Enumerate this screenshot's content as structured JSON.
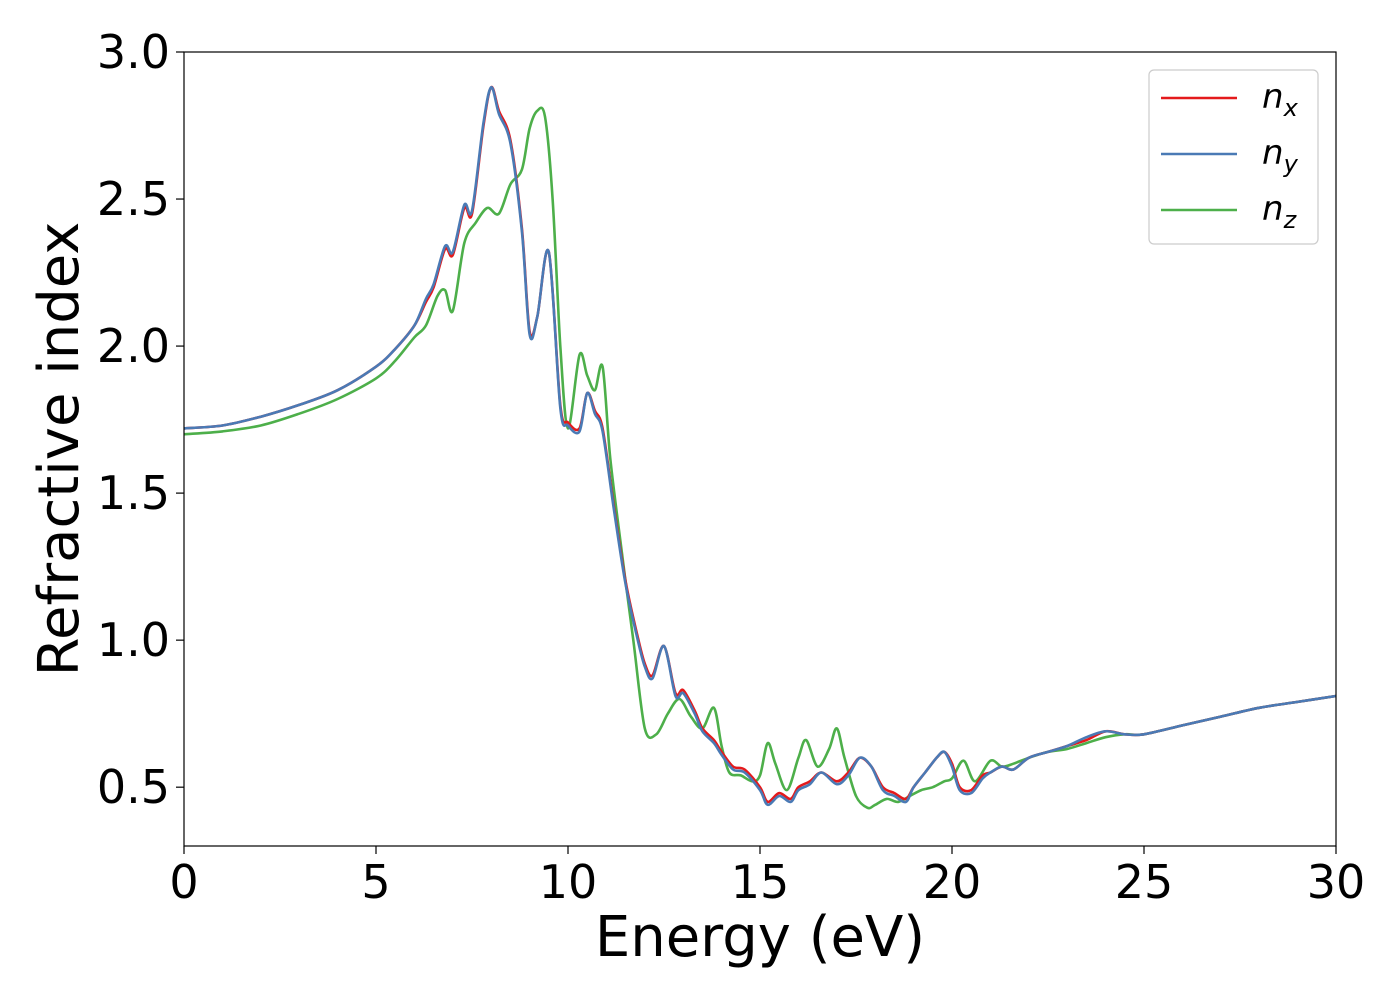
{
  "chart_data": {
    "type": "line",
    "xlabel": "Energy (eV)",
    "ylabel": "Refractive index",
    "xlim": [
      0,
      30
    ],
    "ylim": [
      0.3,
      3.0
    ],
    "xticks": [
      0,
      5,
      10,
      15,
      20,
      25,
      30
    ],
    "xtick_labels": [
      "0",
      "5",
      "10",
      "15",
      "20",
      "25",
      "30"
    ],
    "yticks": [
      0.5,
      1.0,
      1.5,
      2.0,
      2.5,
      3.0
    ],
    "ytick_labels": [
      "0.5",
      "1.0",
      "1.5",
      "2.0",
      "2.5",
      "3.0"
    ],
    "grid": false,
    "legend_position": "top-right",
    "series": [
      {
        "name": "n_x",
        "legend_main": "n",
        "legend_sub": "x",
        "color": "#e41a1c",
        "x": [
          0,
          1,
          2,
          3,
          4,
          5,
          5.5,
          6,
          6.3,
          6.5,
          6.8,
          7.0,
          7.3,
          7.5,
          7.8,
          8.0,
          8.2,
          8.5,
          8.8,
          9.0,
          9.2,
          9.5,
          9.8,
          10.0,
          10.3,
          10.5,
          10.7,
          10.9,
          11.2,
          11.5,
          11.8,
          12.0,
          12.2,
          12.5,
          12.8,
          13.0,
          13.3,
          13.5,
          13.8,
          14.0,
          14.3,
          14.6,
          15.0,
          15.2,
          15.5,
          15.8,
          16.0,
          16.3,
          16.6,
          17.0,
          17.3,
          17.6,
          17.9,
          18.2,
          18.5,
          18.8,
          19.0,
          19.3,
          19.6,
          19.8,
          20.0,
          20.2,
          20.5,
          20.8,
          21.0,
          21.3,
          21.6,
          22.0,
          22.5,
          23.0,
          23.5,
          24.0,
          24.5,
          25.0,
          26.0,
          27.0,
          28.0,
          29.0,
          30.0
        ],
        "values": [
          1.72,
          1.73,
          1.76,
          1.8,
          1.85,
          1.93,
          1.99,
          2.07,
          2.15,
          2.2,
          2.33,
          2.31,
          2.47,
          2.45,
          2.75,
          2.88,
          2.8,
          2.7,
          2.4,
          2.05,
          2.1,
          2.32,
          1.8,
          1.74,
          1.72,
          1.84,
          1.78,
          1.72,
          1.45,
          1.2,
          1.02,
          0.92,
          0.88,
          0.98,
          0.82,
          0.83,
          0.76,
          0.7,
          0.66,
          0.62,
          0.57,
          0.56,
          0.5,
          0.45,
          0.48,
          0.46,
          0.5,
          0.52,
          0.55,
          0.52,
          0.55,
          0.6,
          0.57,
          0.5,
          0.48,
          0.46,
          0.5,
          0.55,
          0.6,
          0.62,
          0.58,
          0.5,
          0.49,
          0.54,
          0.55,
          0.57,
          0.56,
          0.6,
          0.62,
          0.64,
          0.66,
          0.69,
          0.68,
          0.68,
          0.71,
          0.74,
          0.77,
          0.79,
          0.81
        ]
      },
      {
        "name": "n_y",
        "legend_main": "n",
        "legend_sub": "y",
        "color": "#4a7ab5",
        "x": [
          0,
          1,
          2,
          3,
          4,
          5,
          5.5,
          6,
          6.3,
          6.5,
          6.8,
          7.0,
          7.3,
          7.5,
          7.8,
          8.0,
          8.2,
          8.5,
          8.8,
          9.0,
          9.2,
          9.5,
          9.8,
          10.0,
          10.3,
          10.5,
          10.7,
          10.9,
          11.2,
          11.5,
          11.8,
          12.0,
          12.2,
          12.5,
          12.8,
          13.0,
          13.3,
          13.5,
          13.8,
          14.0,
          14.3,
          14.6,
          15.0,
          15.2,
          15.5,
          15.8,
          16.0,
          16.3,
          16.6,
          17.0,
          17.3,
          17.6,
          17.9,
          18.2,
          18.5,
          18.8,
          19.0,
          19.3,
          19.6,
          19.8,
          20.0,
          20.2,
          20.5,
          20.8,
          21.0,
          21.3,
          21.6,
          22.0,
          22.5,
          23.0,
          23.5,
          24.0,
          24.5,
          25.0,
          26.0,
          27.0,
          28.0,
          29.0,
          30.0
        ],
        "values": [
          1.72,
          1.73,
          1.76,
          1.8,
          1.85,
          1.93,
          1.99,
          2.07,
          2.16,
          2.21,
          2.34,
          2.32,
          2.48,
          2.46,
          2.76,
          2.88,
          2.79,
          2.69,
          2.39,
          2.04,
          2.1,
          2.32,
          1.79,
          1.73,
          1.71,
          1.84,
          1.77,
          1.71,
          1.44,
          1.19,
          1.01,
          0.91,
          0.87,
          0.98,
          0.81,
          0.82,
          0.75,
          0.69,
          0.65,
          0.61,
          0.56,
          0.55,
          0.49,
          0.44,
          0.47,
          0.45,
          0.49,
          0.51,
          0.55,
          0.51,
          0.54,
          0.6,
          0.57,
          0.49,
          0.47,
          0.45,
          0.5,
          0.55,
          0.6,
          0.62,
          0.57,
          0.49,
          0.48,
          0.53,
          0.55,
          0.57,
          0.56,
          0.6,
          0.62,
          0.64,
          0.67,
          0.69,
          0.68,
          0.68,
          0.71,
          0.74,
          0.77,
          0.79,
          0.81
        ]
      },
      {
        "name": "n_z",
        "legend_main": "n",
        "legend_sub": "z",
        "color": "#4daf4a",
        "x": [
          0,
          1,
          2,
          3,
          4,
          5,
          5.5,
          6,
          6.3,
          6.6,
          6.8,
          7.0,
          7.3,
          7.6,
          7.9,
          8.2,
          8.5,
          8.8,
          9.0,
          9.2,
          9.4,
          9.6,
          9.8,
          10.0,
          10.3,
          10.5,
          10.7,
          10.9,
          11.1,
          11.4,
          11.7,
          12.0,
          12.3,
          12.6,
          12.9,
          13.2,
          13.5,
          13.8,
          14.0,
          14.2,
          14.5,
          14.8,
          15.0,
          15.2,
          15.4,
          15.7,
          16.0,
          16.2,
          16.5,
          16.8,
          17.0,
          17.2,
          17.5,
          17.8,
          18.0,
          18.3,
          18.6,
          18.9,
          19.2,
          19.5,
          19.8,
          20.0,
          20.3,
          20.6,
          21.0,
          21.3,
          21.6,
          22.0,
          22.5,
          23.0,
          23.5,
          24.0,
          24.5,
          25.0,
          26.0,
          27.0,
          28.0,
          29.0,
          30.0
        ],
        "values": [
          1.7,
          1.71,
          1.73,
          1.77,
          1.82,
          1.89,
          1.95,
          2.03,
          2.07,
          2.17,
          2.19,
          2.12,
          2.35,
          2.42,
          2.47,
          2.45,
          2.55,
          2.6,
          2.74,
          2.8,
          2.78,
          2.5,
          2.0,
          1.72,
          1.97,
          1.9,
          1.85,
          1.93,
          1.62,
          1.3,
          1.0,
          0.7,
          0.68,
          0.75,
          0.8,
          0.74,
          0.7,
          0.77,
          0.64,
          0.55,
          0.54,
          0.52,
          0.54,
          0.65,
          0.58,
          0.49,
          0.6,
          0.66,
          0.57,
          0.63,
          0.7,
          0.6,
          0.47,
          0.43,
          0.44,
          0.46,
          0.45,
          0.47,
          0.49,
          0.5,
          0.52,
          0.53,
          0.59,
          0.52,
          0.59,
          0.57,
          0.58,
          0.6,
          0.62,
          0.63,
          0.65,
          0.67,
          0.68,
          0.68,
          0.71,
          0.74,
          0.77,
          0.79,
          0.81
        ]
      }
    ]
  }
}
